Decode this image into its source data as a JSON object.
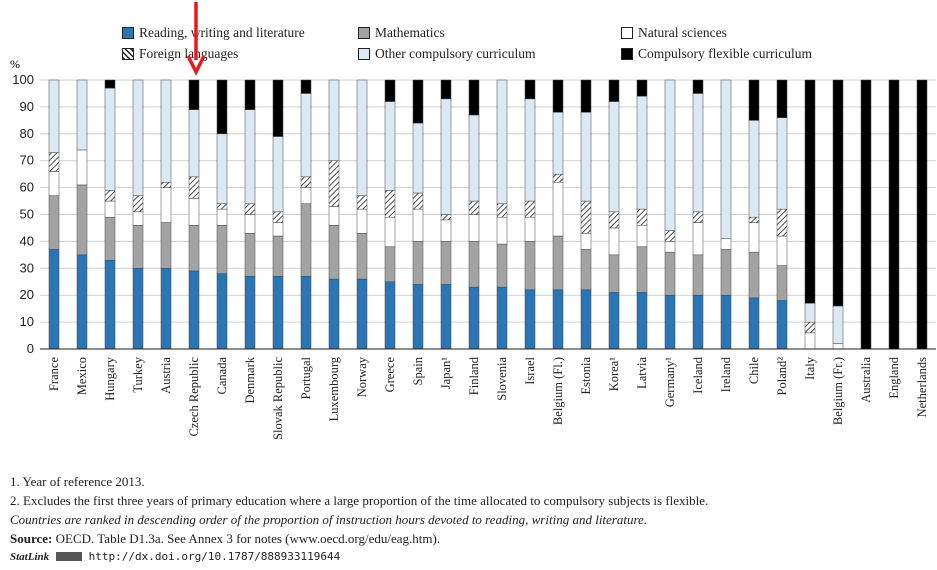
{
  "legend": {
    "reading": "Reading, writing and literature",
    "math": "Mathematics",
    "natural": "Natural sciences",
    "foreign": "Foreign languages",
    "other": "Other compulsory curriculum",
    "flexible": "Compulsory flexible curriculum"
  },
  "colors": {
    "reading": "#2a75b3",
    "math": "#a3a3a3",
    "natural": "#ffffff",
    "other": "#dbe9f4",
    "flexible": "#000000",
    "arrow": "#e8191b"
  },
  "chart_data": {
    "type": "bar",
    "stacked": true,
    "ylabel": "%",
    "ylim": [
      0,
      100
    ],
    "yticks": [
      0,
      10,
      20,
      30,
      40,
      50,
      60,
      70,
      80,
      90,
      100
    ],
    "categories": [
      "France",
      "Mexico",
      "Hungary",
      "Turkey",
      "Austria",
      "Czech Republic",
      "Canada",
      "Denmark",
      "Slovak Republic",
      "Portugal",
      "Luxembourg",
      "Norway",
      "Greece",
      "Spain",
      "Japan¹",
      "Finland",
      "Slovenia",
      "Israel",
      "Belgium (Fl.)",
      "Estonia",
      "Korea¹",
      "Latvia",
      "Germany¹",
      "Iceland",
      "Ireland",
      "Chile",
      "Poland²",
      "Italy",
      "Belgium (Fr.)",
      "Australia",
      "England",
      "Netherlands"
    ],
    "series": [
      {
        "name": "Reading, writing and literature",
        "values": [
          37,
          35,
          33,
          30,
          30,
          29,
          28,
          27,
          27,
          27,
          26,
          26,
          25,
          24,
          24,
          23,
          23,
          22,
          22,
          22,
          21,
          21,
          20,
          20,
          20,
          19,
          18,
          0,
          0,
          0,
          0,
          0
        ]
      },
      {
        "name": "Mathematics",
        "values": [
          20,
          26,
          16,
          16,
          17,
          17,
          18,
          16,
          15,
          27,
          20,
          17,
          13,
          16,
          16,
          17,
          16,
          18,
          20,
          15,
          14,
          17,
          16,
          15,
          17,
          17,
          13,
          0,
          0,
          0,
          0,
          0
        ]
      },
      {
        "name": "Natural sciences",
        "values": [
          9,
          13,
          6,
          5,
          13,
          10,
          6,
          7,
          5,
          6,
          7,
          9,
          11,
          12,
          8,
          10,
          10,
          9,
          20,
          6,
          10,
          8,
          4,
          12,
          4,
          11,
          11,
          6,
          2,
          0,
          0,
          0
        ]
      },
      {
        "name": "Foreign languages",
        "values": [
          7,
          0,
          4,
          6,
          2,
          8,
          2,
          4,
          4,
          4,
          17,
          5,
          10,
          6,
          2,
          5,
          5,
          6,
          3,
          12,
          6,
          6,
          4,
          4,
          0,
          2,
          10,
          4,
          0,
          0,
          0,
          0
        ]
      },
      {
        "name": "Other compulsory curriculum",
        "values": [
          27,
          26,
          38,
          43,
          38,
          25,
          26,
          35,
          28,
          31,
          30,
          43,
          33,
          26,
          43,
          32,
          46,
          38,
          23,
          33,
          41,
          42,
          56,
          44,
          59,
          36,
          34,
          7,
          14,
          0,
          0,
          0
        ]
      },
      {
        "name": "Compulsory flexible curriculum",
        "values": [
          0,
          0,
          3,
          0,
          0,
          11,
          20,
          11,
          21,
          5,
          0,
          0,
          8,
          16,
          7,
          13,
          0,
          7,
          12,
          12,
          8,
          6,
          0,
          5,
          0,
          15,
          14,
          83,
          84,
          100,
          100,
          100
        ]
      }
    ]
  },
  "notes": {
    "n1": "1. Year of reference 2013.",
    "n2": "2. Excludes the first three years of primary education where a large proportion of the time allocated to compulsory subjects is flexible.",
    "n3": "Countries are ranked in descending order of the proportion of instruction hours devoted to reading, writing and literature.",
    "source_label": "Source:",
    "source_text": "OECD. Table D1.3a. See Annex 3 for notes (www.oecd.org/edu/eag.htm).",
    "statlink_label": "StatLink",
    "statlink_url": "http://dx.doi.org/10.1787/888933119644"
  }
}
